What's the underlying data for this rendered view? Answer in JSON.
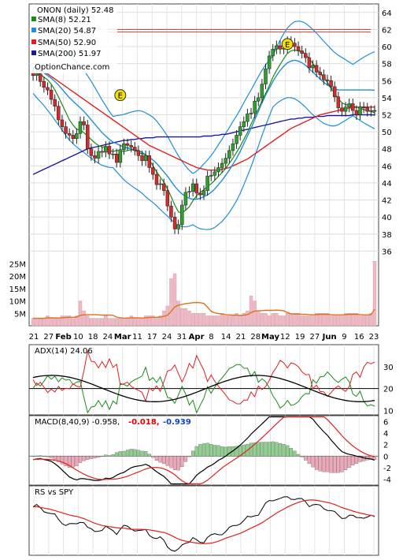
{
  "chart_data": [
    {
      "type": "candlestick",
      "panel": "price",
      "title": "ONON (daily) 52.48",
      "legend": [
        {
          "label": "SMA(8) 52.21",
          "color": "#1a8a1a"
        },
        {
          "label": "SMA(20) 54.87",
          "color": "#1e8fd8"
        },
        {
          "label": "SMA(50) 52.90",
          "color": "#e02020"
        },
        {
          "label": "SMA(200) 51.97",
          "color": "#1a1aa0"
        }
      ],
      "legend_position": "top-left",
      "watermark": "OptionChance.com",
      "ylim": [
        34,
        65
      ],
      "y_ticks": [
        64,
        62,
        60,
        58,
        56,
        54,
        52,
        50,
        48,
        46,
        44,
        42,
        40,
        38,
        36
      ],
      "resistance_line": 62,
      "grid": true,
      "earnings_markers": [
        {
          "label": "E",
          "bar": 24,
          "value": 53
        },
        {
          "label": "E",
          "bar": 70,
          "value": 59
        }
      ],
      "close": [
        56.6,
        56.8,
        55.9,
        55.2,
        54.9,
        53.8,
        53.0,
        51.4,
        50.6,
        49.8,
        49.6,
        49.2,
        49.8,
        51.2,
        50.8,
        48.0,
        47.2,
        46.9,
        47.7,
        47.6,
        48.3,
        47.4,
        47.4,
        46.4,
        47.9,
        48.6,
        48.4,
        48.2,
        47.8,
        47.2,
        46.6,
        47.2,
        45.8,
        45.0,
        43.8,
        43.9,
        43.1,
        41.3,
        40.0,
        38.6,
        39.1,
        41.4,
        42.9,
        43.0,
        43.9,
        42.8,
        42.6,
        43.1,
        44.8,
        44.9,
        45.3,
        45.8,
        46.3,
        46.9,
        47.8,
        48.6,
        49.6,
        50.6,
        51.2,
        52.1,
        52.2,
        53.6,
        54.0,
        55.6,
        57.4,
        58.9,
        59.7,
        60.1,
        59.7,
        59.8,
        60.6,
        60.4,
        60.0,
        59.5,
        59.2,
        58.7,
        57.5,
        57.8,
        57.0,
        56.7,
        56.1,
        56.0,
        55.3,
        54.1,
        52.8,
        52.4,
        52.9,
        53.3,
        52.5,
        52.0,
        52.9,
        52.8,
        52.4,
        52.5,
        52.48
      ],
      "sma8": [
        57.0,
        56.9,
        56.8,
        56.4,
        56.1,
        55.6,
        54.9,
        54.1,
        53.2,
        52.3,
        51.4,
        50.8,
        50.3,
        50.2,
        49.9,
        49.5,
        49.1,
        48.7,
        48.4,
        48.2,
        48.2,
        47.8,
        47.7,
        47.8,
        47.8,
        47.7,
        47.8,
        47.9,
        47.8,
        47.6,
        47.4,
        47.3,
        46.7,
        46.0,
        45.3,
        44.7,
        44.1,
        43.3,
        42.4,
        41.4,
        40.6,
        40.5,
        40.8,
        41.2,
        41.9,
        42.5,
        42.9,
        43.2,
        43.6,
        43.9,
        44.3,
        44.8,
        45.2,
        45.7,
        46.3,
        46.9,
        47.6,
        48.3,
        49.1,
        49.9,
        50.9,
        51.8,
        52.7,
        53.6,
        54.5,
        55.4,
        56.4,
        57.2,
        57.9,
        58.6,
        59.2,
        59.5,
        59.6,
        59.5,
        59.4,
        59.1,
        58.6,
        58.0,
        57.4,
        56.9,
        56.3,
        55.8,
        55.1,
        54.5,
        53.9,
        53.4,
        53.2,
        53.1,
        53.0,
        52.9,
        52.8,
        52.6,
        52.5,
        52.4,
        52.21
      ],
      "sma20": [
        57.5,
        57.3,
        57.1,
        56.9,
        56.6,
        56.3,
        55.9,
        55.5,
        55.0,
        54.5,
        54.0,
        53.6,
        53.2,
        52.8,
        52.4,
        51.9,
        51.4,
        50.9,
        50.4,
        49.9,
        49.5,
        49.1,
        48.8,
        48.6,
        48.4,
        48.2,
        48.1,
        48.0,
        47.9,
        47.8,
        47.6,
        47.3,
        47.0,
        46.7,
        46.3,
        45.8,
        45.3,
        44.8,
        44.2,
        43.6,
        43.1,
        42.7,
        42.4,
        42.2,
        42.1,
        42.1,
        42.2,
        42.4,
        42.6,
        42.9,
        43.3,
        43.8,
        44.3,
        44.9,
        45.5,
        46.2,
        46.9,
        47.7,
        48.6,
        49.5,
        50.4,
        51.4,
        52.4,
        53.4,
        54.3,
        55.1,
        55.9,
        56.6,
        57.2,
        57.7,
        58.1,
        58.3,
        58.4,
        58.3,
        58.1,
        57.8,
        57.4,
        57.0,
        56.6,
        56.2,
        55.8,
        55.5,
        55.2,
        55.0,
        54.9,
        54.9,
        54.9,
        54.9,
        54.9,
        54.9,
        54.9,
        54.9,
        54.9,
        54.9,
        54.87
      ],
      "sma50": [
        57.6,
        57.4,
        57.2,
        57.0,
        56.8,
        56.5,
        56.2,
        55.9,
        55.6,
        55.3,
        55.0,
        54.7,
        54.4,
        54.1,
        53.8,
        53.5,
        53.2,
        52.9,
        52.6,
        52.3,
        52.0,
        51.7,
        51.4,
        51.1,
        50.8,
        50.5,
        50.2,
        49.9,
        49.6,
        49.3,
        49.0,
        48.7,
        48.4,
        48.2,
        48.0,
        47.8,
        47.6,
        47.4,
        47.2,
        47.0,
        46.8,
        46.6,
        46.4,
        46.2,
        46.0,
        45.8,
        45.7,
        45.6,
        45.5,
        45.5,
        45.5,
        45.5,
        45.6,
        45.7,
        45.8,
        46.0,
        46.2,
        46.4,
        46.6,
        46.8,
        47.1,
        47.4,
        47.7,
        48.0,
        48.3,
        48.6,
        48.9,
        49.2,
        49.5,
        49.8,
        50.1,
        50.4,
        50.6,
        50.8,
        51.0,
        51.2,
        51.4,
        51.6,
        51.8,
        52.0,
        52.1,
        52.2,
        52.3,
        52.4,
        52.5,
        52.6,
        52.7,
        52.8,
        52.8,
        52.9,
        52.9,
        52.9,
        52.9,
        52.9,
        52.9
      ],
      "sma200": [
        45.0,
        45.2,
        45.4,
        45.6,
        45.8,
        46.0,
        46.2,
        46.4,
        46.6,
        46.8,
        47.0,
        47.2,
        47.4,
        47.6,
        47.8,
        48.0,
        48.1,
        48.2,
        48.3,
        48.4,
        48.5,
        48.6,
        48.7,
        48.8,
        48.9,
        49.0,
        49.0,
        49.1,
        49.1,
        49.2,
        49.2,
        49.3,
        49.3,
        49.3,
        49.4,
        49.4,
        49.4,
        49.4,
        49.4,
        49.4,
        49.4,
        49.4,
        49.4,
        49.4,
        49.4,
        49.4,
        49.4,
        49.5,
        49.5,
        49.5,
        49.6,
        49.6,
        49.7,
        49.7,
        49.8,
        49.9,
        50.0,
        50.1,
        50.2,
        50.3,
        50.4,
        50.5,
        50.6,
        50.7,
        50.8,
        50.9,
        51.0,
        51.1,
        51.2,
        51.3,
        51.4,
        51.5,
        51.5,
        51.6,
        51.6,
        51.7,
        51.7,
        51.7,
        51.8,
        51.8,
        51.8,
        51.9,
        51.9,
        51.9,
        51.9,
        51.9,
        51.9,
        51.9,
        52.0,
        52.0,
        52.0,
        52.0,
        52.0,
        52.0,
        51.97
      ],
      "x_tick_labels": [
        "21",
        "27",
        "Feb",
        "10",
        "18",
        "24",
        "Mar",
        "11",
        "17",
        "24",
        "31",
        "Apr",
        "8",
        "14",
        "21",
        "28",
        "May",
        "12",
        "19",
        "27",
        "Jun",
        "9",
        "16",
        "23"
      ]
    },
    {
      "type": "bar",
      "panel": "volume",
      "ylim": [
        0,
        28
      ],
      "y_ticks": [
        "25M",
        "20M",
        "15M",
        "10M",
        "5M"
      ],
      "values_millions": [
        3,
        3,
        3,
        3,
        4,
        3,
        3,
        3,
        4,
        4,
        4,
        3,
        4,
        10,
        6,
        4,
        3,
        3,
        3,
        3,
        4,
        3,
        3,
        3,
        3,
        3,
        3,
        4,
        3,
        3,
        3,
        4,
        4,
        4,
        3,
        4,
        6,
        8,
        19,
        21,
        10,
        7,
        7,
        6,
        5,
        5,
        5,
        5,
        4,
        4,
        4,
        4,
        5,
        4,
        4,
        4,
        5,
        4,
        5,
        6,
        12,
        10,
        6,
        5,
        5,
        4,
        5,
        5,
        4,
        4,
        5,
        5,
        5,
        5,
        4,
        4,
        4,
        4,
        5,
        5,
        5,
        5,
        4,
        4,
        4,
        4,
        5,
        5,
        5,
        5,
        4,
        4,
        4,
        5,
        26
      ]
    },
    {
      "type": "line",
      "panel": "adx",
      "title": "ADX(14) 24.06",
      "ylim": [
        8,
        40
      ],
      "y_ticks": [
        30,
        20,
        10
      ],
      "ref_line": 20
    },
    {
      "type": "line",
      "panel": "macd",
      "title": "MACD(8,40,9) -0.958,",
      "signal_label": "-0.018,",
      "hist_label": "-0.939",
      "ylim": [
        -5,
        7
      ],
      "y_ticks": [
        6,
        4,
        2,
        0,
        -2,
        -4
      ]
    },
    {
      "type": "line",
      "panel": "rs",
      "title": "RS vs SPY"
    }
  ]
}
